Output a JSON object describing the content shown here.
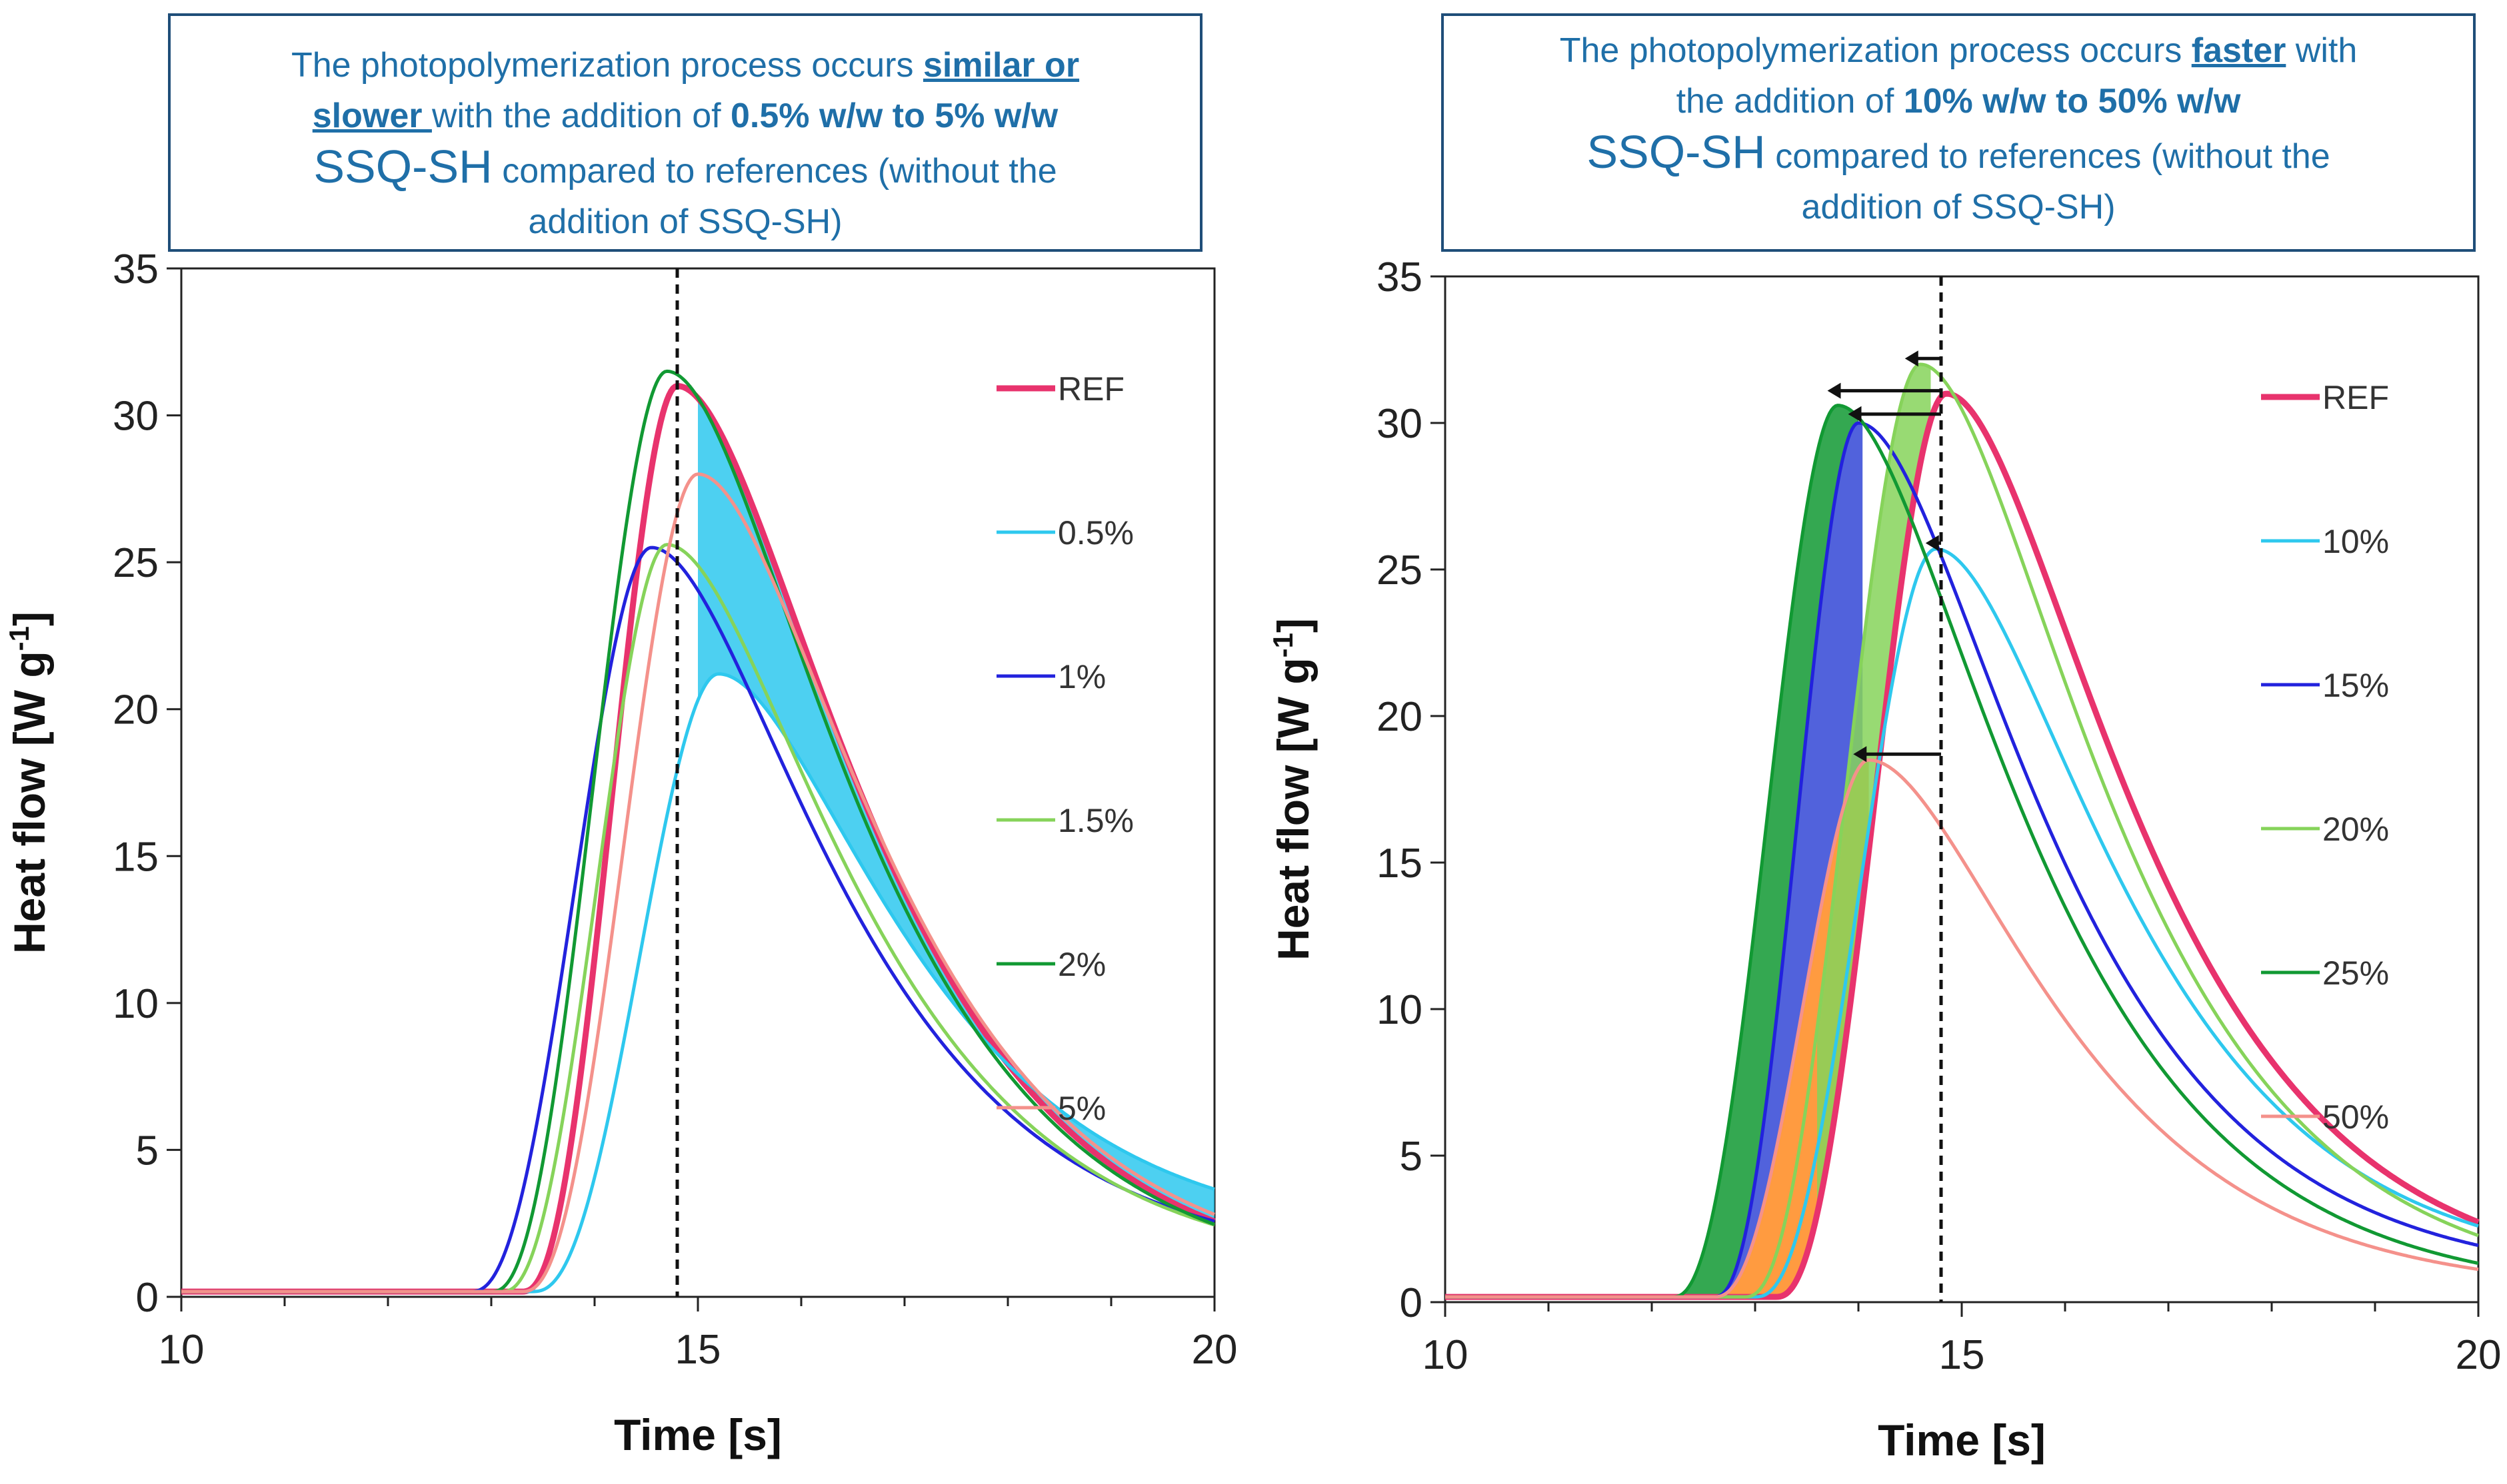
{
  "colors": {
    "REF": "#e8336d",
    "0.5%": "#2ec8ee",
    "1%": "#2222dd",
    "1.5%": "#86d35a",
    "2%": "#119933",
    "5%": "#f4918b",
    "10%": "#2ec8ee",
    "15%": "#2222dd",
    "20%": "#86d35a",
    "25%": "#119933",
    "50%": "#f4918b",
    "callout_text": "#1f6fa8",
    "callout_border": "#1f4e79"
  },
  "callouts": {
    "left": {
      "l1_a": "The photopolymerization process occurs ",
      "l1_b": "similar or",
      "l2_a": "slower ",
      "l2_b": "with the addition of ",
      "l2_c": "0.5% w/w to 5% w/w",
      "l3_a": "SSQ-SH",
      "l3_b": " compared to references (without the",
      "l4": "addition of SSQ-SH)"
    },
    "right": {
      "l1_a": "The photopolymerization process occurs ",
      "l1_b": "faster",
      "l1_c": " with",
      "l2_a": "the addition of ",
      "l2_b": "10% w/w to 50% w/w",
      "l3_a": "SSQ-SH",
      "l3_b": " compared to references (without the",
      "l4": "addition of SSQ-SH)"
    }
  },
  "chart_data": [
    {
      "type": "line",
      "xlabel": "Time [s]",
      "ylabel": "Heat flow [W g",
      "ylabel_sup": "-1",
      "ylabel_end": "]",
      "xlim": [
        10,
        20
      ],
      "ylim": [
        0,
        35
      ],
      "xticks": [
        10,
        15,
        20
      ],
      "yticks": [
        0,
        5,
        10,
        15,
        20,
        25,
        30,
        35
      ],
      "vline_x": 14.8,
      "legend": [
        "REF",
        "0.5%",
        "1%",
        "1.5%",
        "2%",
        "5%"
      ],
      "series": [
        {
          "name": "REF",
          "onset": 13.3,
          "peak_x": 14.8,
          "peak_y": 31.0,
          "tail": 0.4
        },
        {
          "name": "0.5%",
          "onset": 13.4,
          "peak_x": 15.2,
          "peak_y": 21.2,
          "tail": 1.9
        },
        {
          "name": "1%",
          "onset": 12.8,
          "peak_x": 14.55,
          "peak_y": 25.5,
          "tail": 1.1
        },
        {
          "name": "1.5%",
          "onset": 13.1,
          "peak_x": 14.7,
          "peak_y": 25.6,
          "tail": 0.8
        },
        {
          "name": "2%",
          "onset": 13.0,
          "peak_x": 14.7,
          "peak_y": 31.5,
          "tail": 0.4
        },
        {
          "name": "5%",
          "onset": 13.3,
          "peak_x": 15.0,
          "peak_y": 28.0,
          "tail": 0.6
        }
      ]
    },
    {
      "type": "line",
      "xlabel": "Time [s]",
      "ylabel": "Heat flow [W g",
      "ylabel_sup": "-1",
      "ylabel_end": "]",
      "xlim": [
        10,
        20
      ],
      "ylim": [
        0,
        35
      ],
      "xticks": [
        10,
        15,
        20
      ],
      "yticks": [
        0,
        5,
        10,
        15,
        20,
        25,
        30,
        35
      ],
      "vline_x": 14.8,
      "legend": [
        "REF",
        "10%",
        "15%",
        "20%",
        "25%",
        "50%"
      ],
      "series": [
        {
          "name": "REF",
          "onset": 13.2,
          "peak_x": 14.85,
          "peak_y": 31.0,
          "tail": 0.5
        },
        {
          "name": "10%",
          "onset": 13.0,
          "peak_x": 14.75,
          "peak_y": 25.7,
          "tail": 0.9
        },
        {
          "name": "15%",
          "onset": 12.6,
          "peak_x": 14.0,
          "peak_y": 30.0,
          "tail": 0.7
        },
        {
          "name": "20%",
          "onset": 12.9,
          "peak_x": 14.6,
          "peak_y": 32.0,
          "tail": 0.3
        },
        {
          "name": "25%",
          "onset": 12.2,
          "peak_x": 13.8,
          "peak_y": 30.6,
          "tail": 0.2
        },
        {
          "name": "50%",
          "onset": 12.6,
          "peak_x": 14.1,
          "peak_y": 18.5,
          "tail": 0.3
        }
      ],
      "arrows": [
        {
          "y": 32.2,
          "x_from": 14.8,
          "x_to": 14.45
        },
        {
          "y": 31.1,
          "x_from": 14.8,
          "x_to": 13.7
        },
        {
          "y": 30.3,
          "x_from": 14.8,
          "x_to": 13.9
        },
        {
          "y": 25.9,
          "x_from": 14.8,
          "x_to": 14.65
        },
        {
          "y": 18.7,
          "x_from": 14.8,
          "x_to": 13.95
        }
      ]
    }
  ]
}
